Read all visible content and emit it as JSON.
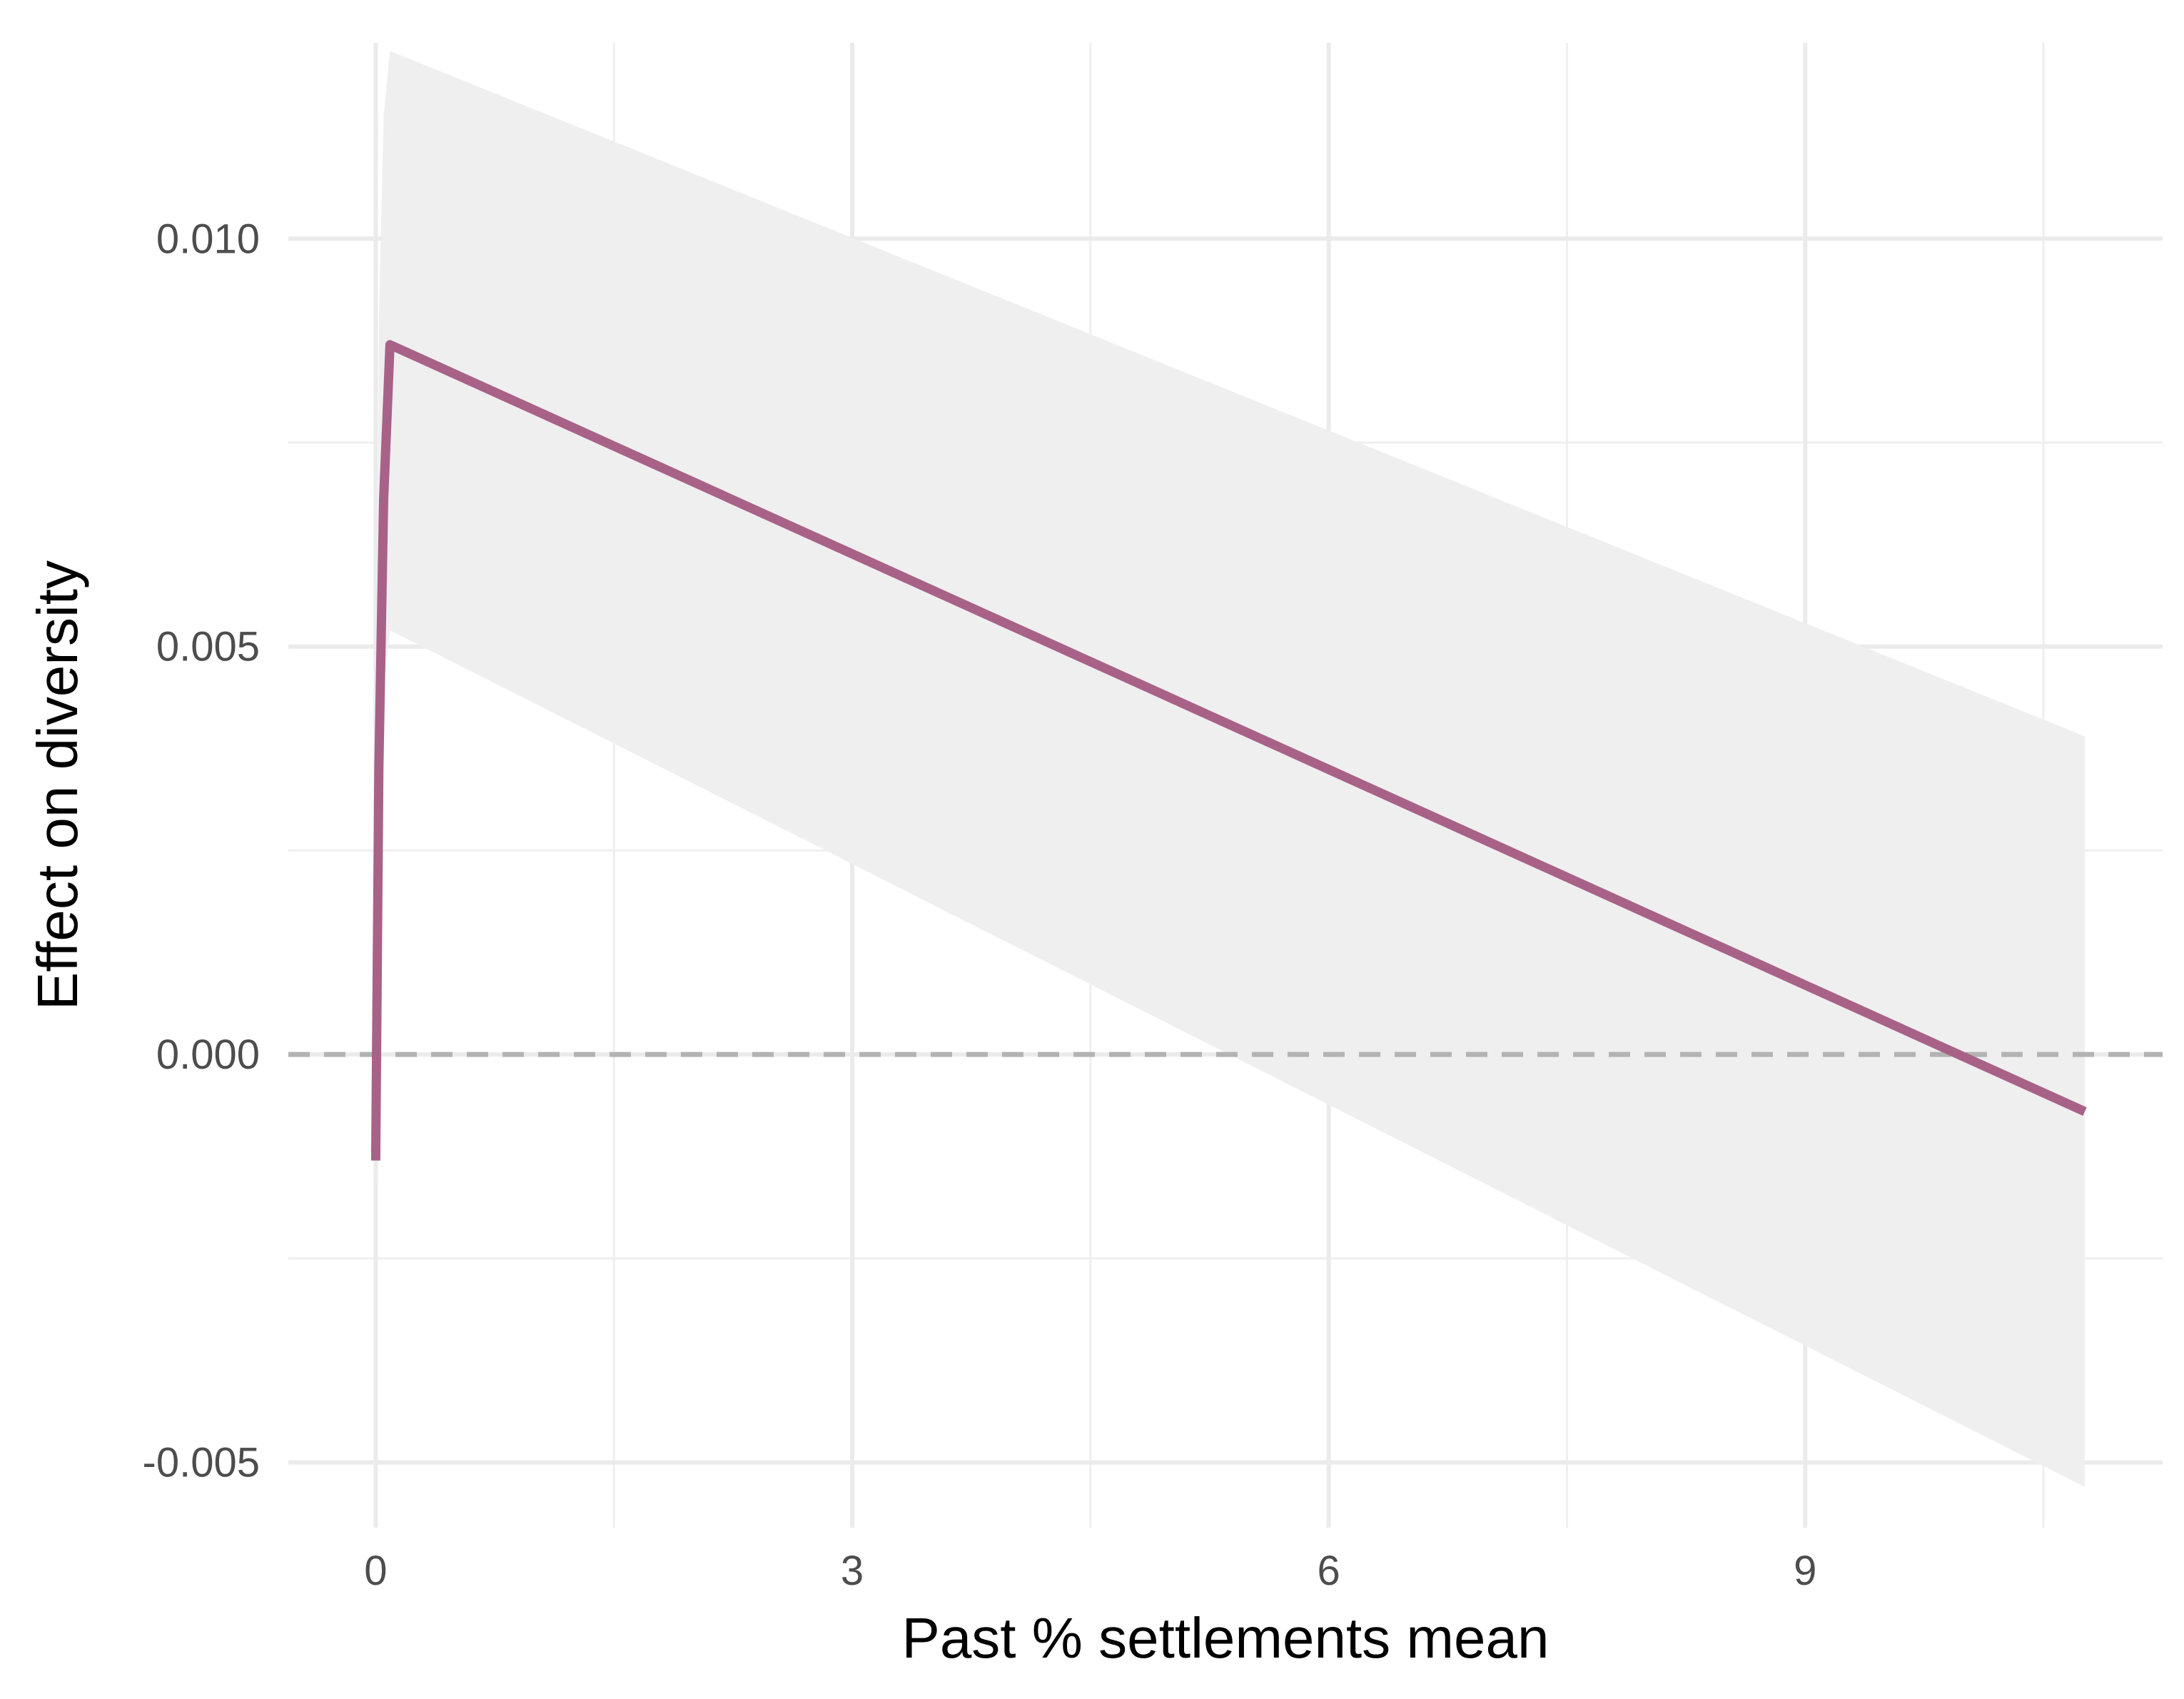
{
  "chart_data": {
    "type": "line",
    "xlabel": "Past % settlements mean",
    "ylabel": "Effect on diversity",
    "xlim": [
      -0.55,
      11.25
    ],
    "ylim": [
      -0.0058,
      0.0124
    ],
    "x_ticks": [
      0,
      3,
      6,
      9
    ],
    "x_tick_labels": [
      "0",
      "3",
      "6",
      "9"
    ],
    "x_minor_ticks": [
      1.5,
      4.5,
      7.5,
      10.5
    ],
    "y_ticks": [
      -0.005,
      0.0,
      0.005,
      0.01
    ],
    "y_tick_labels": [
      "-0.005",
      "0.000",
      "0.005",
      "0.010"
    ],
    "y_minor_ticks": [
      -0.0025,
      0.0025,
      0.0075
    ],
    "grid": true,
    "reference_line": {
      "y": 0.0,
      "style": "dashed",
      "color": "#b3b3b3"
    },
    "series": [
      {
        "x": [
          0.0,
          0.02,
          0.05,
          0.09,
          10.76
        ],
        "y": [
          -0.0013,
          0.0035,
          0.0068,
          0.0087,
          -0.0007
        ],
        "ci_lower": [
          -0.0016,
          0.002,
          0.0045,
          0.0052,
          -0.0053
        ],
        "ci_upper": [
          0.0,
          0.009,
          0.0115,
          0.0123,
          0.0039
        ],
        "color": "#a86287",
        "band_color": "#efefef"
      }
    ]
  }
}
